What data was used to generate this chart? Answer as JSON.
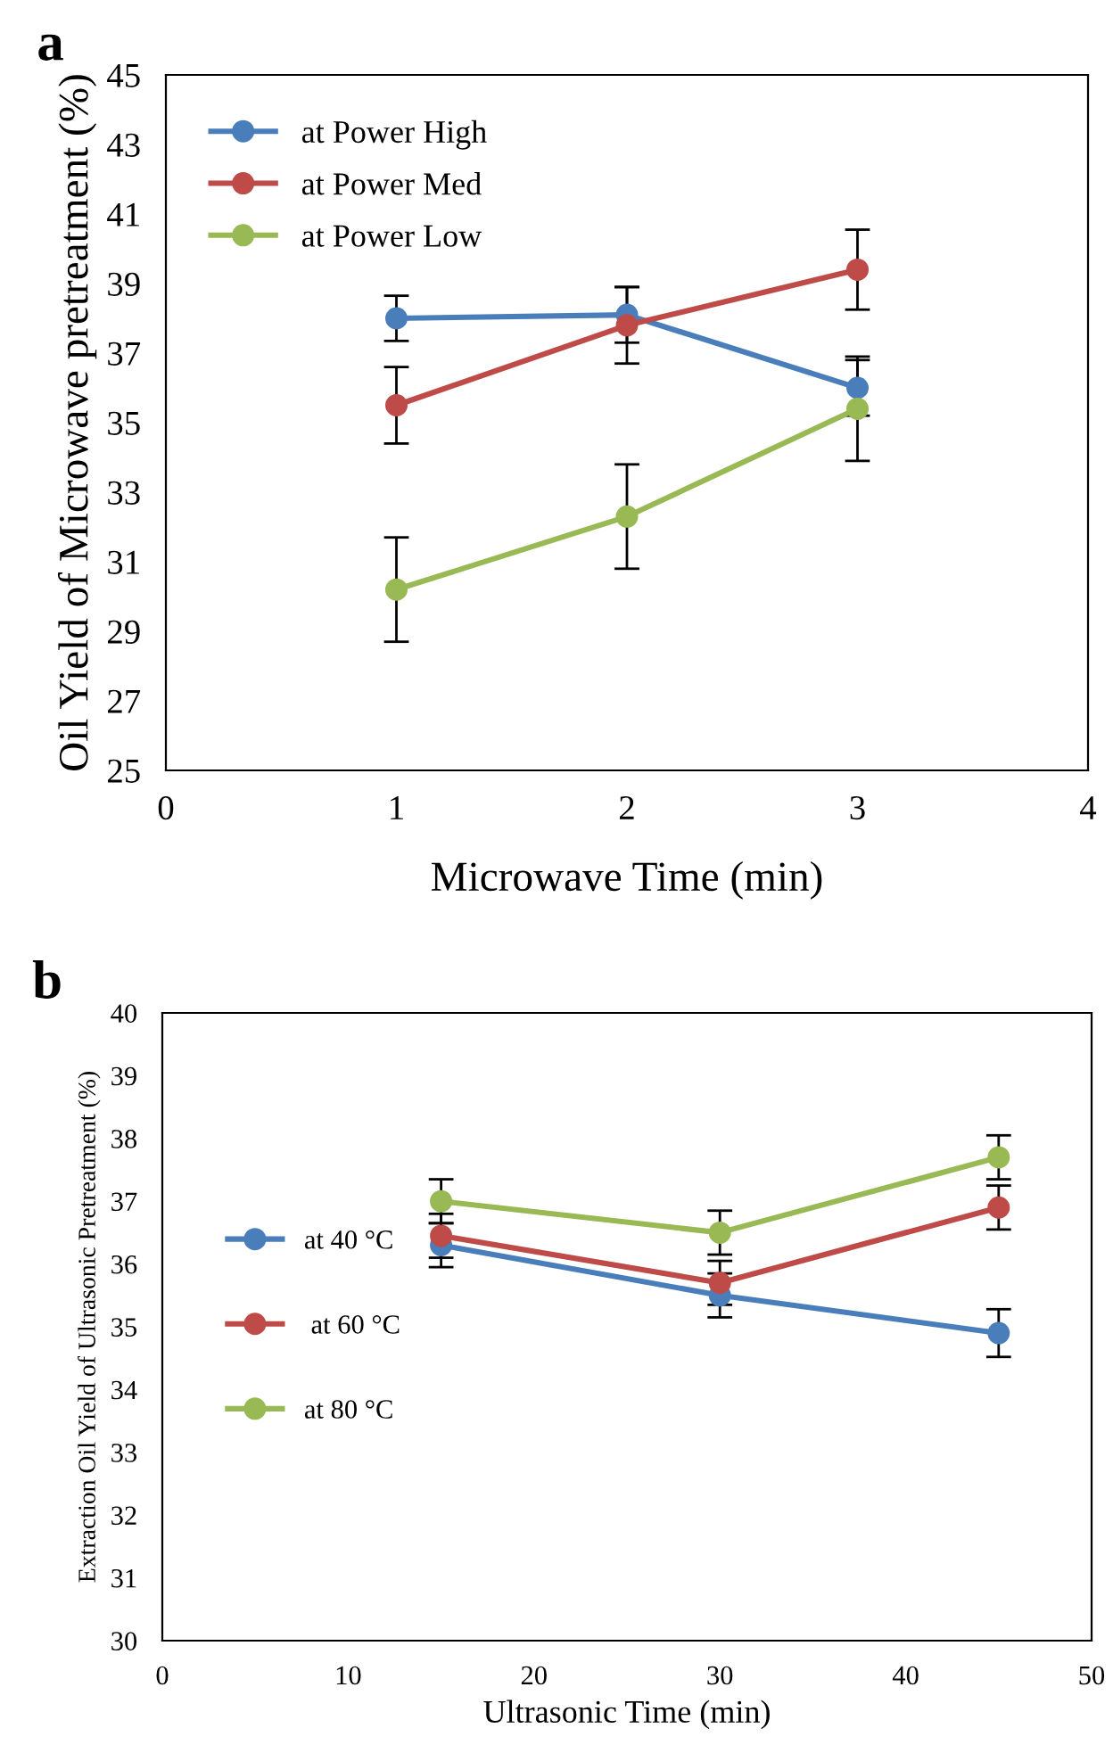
{
  "chart_data": [
    {
      "type": "line",
      "title": "a",
      "xlabel": "Microwave Time (min)",
      "ylabel": "Oil Yield of Microwave pretreatment (%)",
      "x": [
        1,
        2,
        3
      ],
      "xlim": [
        0,
        4
      ],
      "xticks": [
        0,
        1,
        2,
        3,
        4
      ],
      "ylim": [
        25,
        45
      ],
      "yticks": [
        25,
        27,
        29,
        31,
        33,
        35,
        37,
        39,
        41,
        43,
        45
      ],
      "marker": "circle",
      "line_style": "solid",
      "grid": false,
      "legend": "top left",
      "series": [
        {
          "name": "at Power High",
          "color": "#4a7ebb",
          "values": [
            38.0,
            38.1,
            36.0
          ],
          "errors": [
            0.65,
            0.8,
            0.8
          ]
        },
        {
          "name": "at Power Med",
          "color": "#be4b48",
          "values": [
            35.5,
            37.8,
            39.4
          ],
          "errors": [
            1.1,
            1.1,
            1.15
          ]
        },
        {
          "name": "at Power Low",
          "color": "#98b954",
          "values": [
            30.2,
            32.3,
            35.4
          ],
          "errors": [
            1.5,
            1.5,
            1.5
          ]
        }
      ]
    },
    {
      "type": "line",
      "title": "b",
      "xlabel": "Ultrasonic Time (min)",
      "ylabel": "Extraction Oil Yield of Ultrasonic Pretreatment (%)",
      "x": [
        15,
        30,
        45
      ],
      "xlim": [
        0,
        50
      ],
      "xticks": [
        0,
        10,
        20,
        30,
        40,
        50
      ],
      "ylim": [
        30,
        40
      ],
      "yticks": [
        30,
        31,
        32,
        33,
        34,
        35,
        36,
        37,
        38,
        39,
        40
      ],
      "marker": "circle",
      "line_style": "solid",
      "grid": false,
      "legend": "center left",
      "series": [
        {
          "name": "at 40 °C",
          "color": "#4a7ebb",
          "values": [
            36.3,
            35.5,
            34.9
          ],
          "errors": [
            0.35,
            0.35,
            0.38
          ]
        },
        {
          "name": " at 60 °C",
          "color": "#be4b48",
          "values": [
            36.45,
            35.7,
            36.9
          ],
          "errors": [
            0.35,
            0.35,
            0.35
          ]
        },
        {
          "name": "at 80 °C",
          "color": "#98b954",
          "values": [
            37.0,
            36.5,
            37.7
          ],
          "errors": [
            0.35,
            0.35,
            0.35
          ]
        }
      ]
    }
  ]
}
